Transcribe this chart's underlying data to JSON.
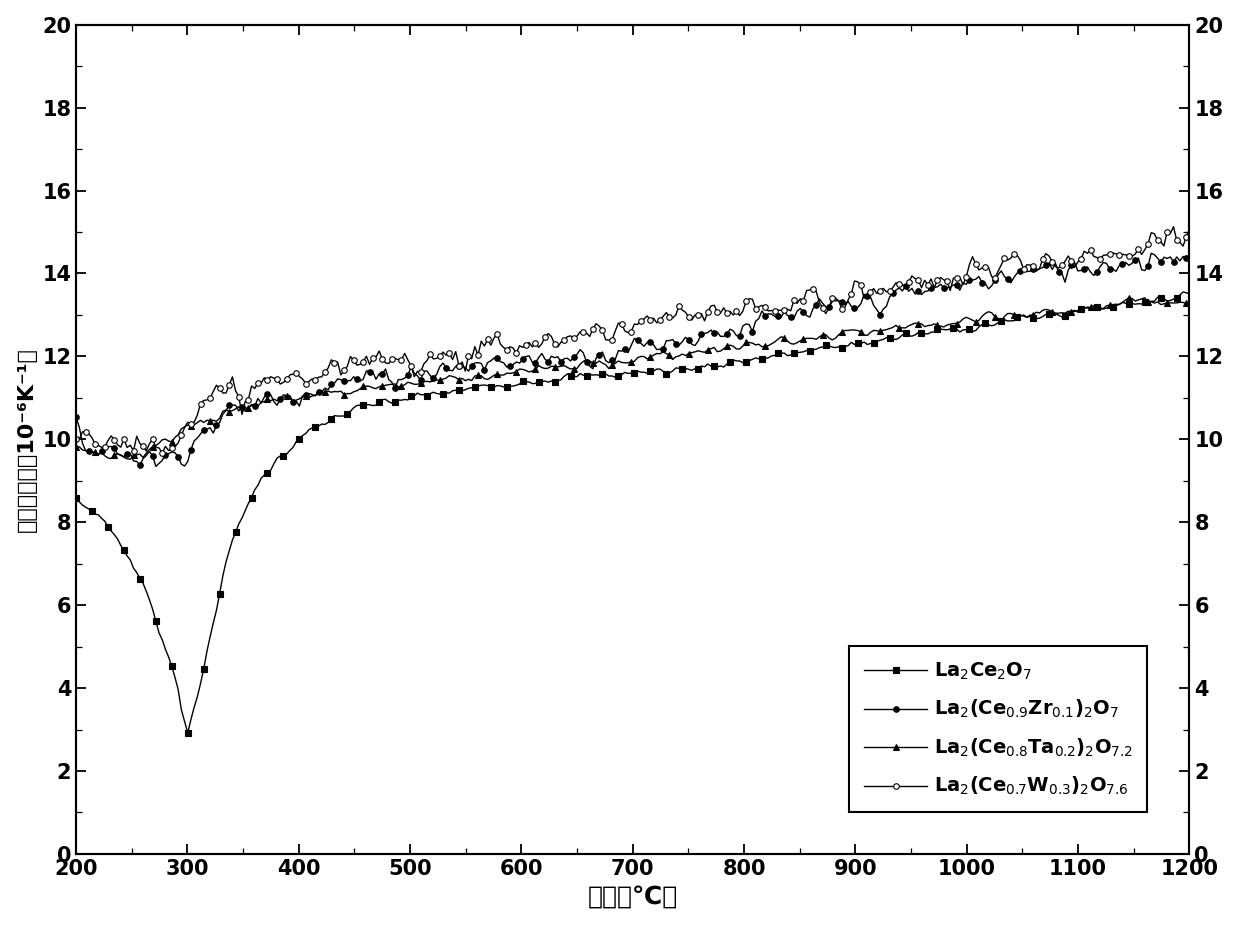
{
  "xlabel": "温度（℃）",
  "ylabel": "热膨胀系数（10⁻⁶K⁻¹）",
  "ylabel_line1": "热膨胀系数",
  "ylabel_line2": "（10⁻⁶K⁻¹）",
  "xlim": [
    200,
    1200
  ],
  "ylim": [
    0,
    20
  ],
  "xticks": [
    200,
    300,
    400,
    500,
    600,
    700,
    800,
    900,
    1000,
    1100,
    1200
  ],
  "yticks": [
    0,
    2,
    4,
    6,
    8,
    10,
    12,
    14,
    16,
    18,
    20
  ],
  "background_color": "#ffffff",
  "series": [
    {
      "label": "La$_2$Ce$_2$O$_7$",
      "marker": "s",
      "markerfacecolor": "black",
      "markeredgecolor": "black",
      "kx": [
        200,
        220,
        240,
        260,
        270,
        280,
        290,
        295,
        300,
        310,
        320,
        330,
        340,
        360,
        380,
        400,
        430,
        460,
        500,
        550,
        600,
        650,
        700,
        750,
        800,
        850,
        900,
        950,
        1000,
        1050,
        1100,
        1150,
        1200
      ],
      "ky": [
        8.5,
        8.2,
        7.5,
        6.5,
        5.8,
        5.0,
        4.2,
        3.5,
        3.0,
        3.8,
        5.2,
        6.5,
        7.5,
        8.8,
        9.5,
        10.0,
        10.5,
        10.8,
        11.0,
        11.2,
        11.4,
        11.5,
        11.6,
        11.7,
        11.9,
        12.1,
        12.3,
        12.5,
        12.7,
        12.9,
        13.1,
        13.3,
        13.5
      ],
      "noise": 0.08,
      "markevery": 5
    },
    {
      "label": "La$_2$(Ce$_{0.9}$Zr$_{0.1}$)$_2$O$_7$",
      "marker": "o",
      "markerfacecolor": "black",
      "markeredgecolor": "black",
      "kx": [
        200,
        220,
        240,
        260,
        280,
        300,
        320,
        350,
        380,
        420,
        470,
        530,
        600,
        680,
        760,
        850,
        950,
        1050,
        1150,
        1200
      ],
      "ky": [
        10.0,
        9.8,
        9.7,
        9.6,
        9.5,
        9.8,
        10.3,
        10.8,
        11.0,
        11.3,
        11.5,
        11.7,
        11.9,
        12.1,
        12.5,
        13.0,
        13.5,
        14.0,
        14.3,
        14.5
      ],
      "noise": 0.22,
      "markevery": 4
    },
    {
      "label": "La$_2$(Ce$_{0.8}$Ta$_{0.2}$)$_2$O$_{7.2}$",
      "marker": "^",
      "markerfacecolor": "black",
      "markeredgecolor": "black",
      "kx": [
        200,
        220,
        240,
        260,
        280,
        300,
        330,
        370,
        420,
        480,
        550,
        630,
        720,
        820,
        920,
        1020,
        1120,
        1200
      ],
      "ky": [
        9.8,
        9.6,
        9.5,
        9.7,
        10.0,
        10.3,
        10.6,
        10.9,
        11.1,
        11.3,
        11.5,
        11.7,
        12.0,
        12.3,
        12.6,
        12.9,
        13.2,
        13.4
      ],
      "noise": 0.1,
      "markevery": 6
    },
    {
      "label": "La$_2$(Ce$_{0.7}$W$_{0.3}$)$_2$O$_{7.6}$",
      "marker": "o",
      "markerfacecolor": "white",
      "markeredgecolor": "black",
      "kx": [
        200,
        220,
        240,
        260,
        280,
        300,
        330,
        370,
        420,
        480,
        550,
        630,
        720,
        820,
        920,
        1020,
        1120,
        1200
      ],
      "ky": [
        10.2,
        10.0,
        9.9,
        9.8,
        10.0,
        10.5,
        11.0,
        11.3,
        11.6,
        11.9,
        12.1,
        12.4,
        12.8,
        13.2,
        13.6,
        14.1,
        14.5,
        15.0
      ],
      "noise": 0.28,
      "markevery": 3
    }
  ]
}
